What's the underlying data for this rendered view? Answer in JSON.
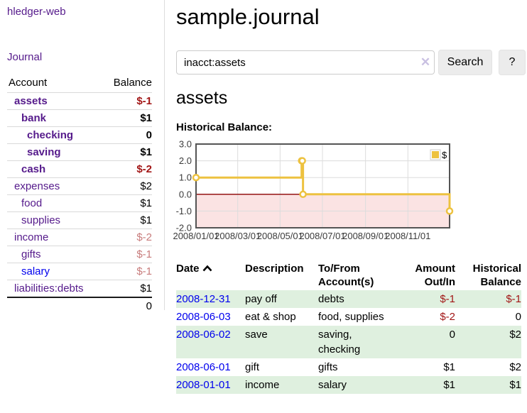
{
  "app": {
    "brand": "hledger-web"
  },
  "sidebar": {
    "nav_journal": "Journal",
    "accounts_table": {
      "header_account": "Account",
      "header_balance": "Balance",
      "rows": [
        {
          "name": "assets",
          "balance": "$-1",
          "level": 1,
          "in_account": true,
          "link": "visited",
          "tone": "neg-strong"
        },
        {
          "name": "bank",
          "balance": "$1",
          "level": 2,
          "in_account": true,
          "link": "visited",
          "tone": "plain"
        },
        {
          "name": "checking",
          "balance": "0",
          "level": 3,
          "in_account": true,
          "link": "visited",
          "tone": "plain"
        },
        {
          "name": "saving",
          "balance": "$1",
          "level": 3,
          "in_account": true,
          "link": "visited",
          "tone": "plain"
        },
        {
          "name": "cash",
          "balance": "$-2",
          "level": 2,
          "in_account": true,
          "link": "visited",
          "tone": "neg-strong"
        },
        {
          "name": "expenses",
          "balance": "$2",
          "level": 1,
          "in_account": false,
          "link": "visited",
          "tone": "plain"
        },
        {
          "name": "food",
          "balance": "$1",
          "level": 2,
          "in_account": false,
          "link": "visited",
          "tone": "plain"
        },
        {
          "name": "supplies",
          "balance": "$1",
          "level": 2,
          "in_account": false,
          "link": "visited",
          "tone": "plain"
        },
        {
          "name": "income",
          "balance": "$-2",
          "level": 1,
          "in_account": false,
          "link": "visited",
          "tone": "neg-muted"
        },
        {
          "name": "gifts",
          "balance": "$-1",
          "level": 2,
          "in_account": false,
          "link": "visited",
          "tone": "neg-muted"
        },
        {
          "name": "salary",
          "balance": "$-1",
          "level": 2,
          "in_account": false,
          "link": "unvisited",
          "tone": "neg-muted"
        },
        {
          "name": "liabilities:debts",
          "balance": "$1",
          "level": 1,
          "in_account": false,
          "link": "visited",
          "tone": "plain"
        }
      ],
      "total": "0"
    }
  },
  "main": {
    "title": "sample.journal",
    "search": {
      "value": "inacct:assets",
      "clear_glyph": "✕",
      "search_label": "Search",
      "help_label": "?"
    },
    "account_heading": "assets",
    "chart_label": "Historical Balance:"
  },
  "chart_data": {
    "type": "line",
    "title": "Historical Balance",
    "step": true,
    "series": [
      {
        "name": "$",
        "color": "#edc240",
        "points": [
          {
            "date": "2008-01-01",
            "day": 0,
            "value": 1
          },
          {
            "date": "2008-06-01",
            "day": 152,
            "value": 2
          },
          {
            "date": "2008-06-02",
            "day": 153,
            "value": 2
          },
          {
            "date": "2008-06-03",
            "day": 154,
            "value": 0
          },
          {
            "date": "2008-12-31",
            "day": 365,
            "value": -1
          }
        ]
      }
    ],
    "x_ticks": [
      {
        "day": 0,
        "label": "2008/01/01"
      },
      {
        "day": 60,
        "label": "2008/03/01"
      },
      {
        "day": 121,
        "label": "2008/05/01"
      },
      {
        "day": 182,
        "label": "2008/07/01"
      },
      {
        "day": 244,
        "label": "2008/09/01"
      },
      {
        "day": 305,
        "label": "2008/11/01"
      }
    ],
    "y_ticks": [
      "3.0",
      "2.0",
      "1.0",
      "0.0",
      "-1.0",
      "-2.0"
    ],
    "ylim": [
      -2,
      3
    ],
    "xlim_days": [
      0,
      365
    ],
    "legend": {
      "label": "$",
      "position": "top-right"
    },
    "grid": true,
    "colors": {
      "border": "#545454",
      "gridline": "#dcdcdc",
      "zero_line": "#8b0000",
      "negative_region": "#f8c8c8",
      "marker_fill": "#ffffff"
    }
  },
  "register_table": {
    "headers": {
      "date": "Date",
      "description": "Description",
      "accounts": "To/From Account(s)",
      "amount": "Amount Out/In",
      "balance": "Historical Balance"
    },
    "rows": [
      {
        "date": "2008-12-31",
        "description": "pay off",
        "accounts": "debts",
        "amount": "$-1",
        "balance": "$-1"
      },
      {
        "date": "2008-06-03",
        "description": "eat & shop",
        "accounts": "food, supplies",
        "amount": "$-2",
        "balance": "0"
      },
      {
        "date": "2008-06-02",
        "description": "save",
        "accounts": "saving, checking",
        "amount": "0",
        "balance": "$2"
      },
      {
        "date": "2008-06-01",
        "description": "gift",
        "accounts": "gifts",
        "amount": "$1",
        "balance": "$2"
      },
      {
        "date": "2008-01-01",
        "description": "income",
        "accounts": "salary",
        "amount": "$1",
        "balance": "$1"
      }
    ]
  },
  "colors": {
    "link_visited": "#551A8B",
    "link_unvisited": "#0000EE",
    "negative_strong": "#a21616",
    "negative_muted": "#c87c7c",
    "row_shade_green": "#dff0df",
    "series_gold": "#edc240"
  }
}
